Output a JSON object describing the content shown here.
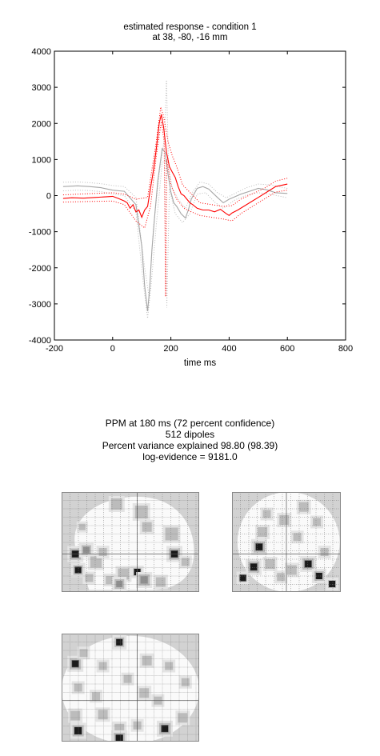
{
  "chart_data": {
    "type": "line",
    "title": "estimated response - condition 1",
    "subtitle": "at 38, -80, -16 mm",
    "xlabel": "time  ms",
    "ylabel": "",
    "xlim": [
      -200,
      800
    ],
    "ylim": [
      -4000,
      4000
    ],
    "xticks": [
      -200,
      0,
      200,
      400,
      600,
      800
    ],
    "yticks": [
      -4000,
      -3000,
      -2000,
      -1000,
      0,
      1000,
      2000,
      3000,
      4000
    ],
    "grid": false,
    "series": [
      {
        "color": "#ff0000",
        "style": "solid",
        "points": [
          [
            -170,
            -80
          ],
          [
            -140,
            -60
          ],
          [
            -100,
            -70
          ],
          [
            -60,
            -50
          ],
          [
            -20,
            -30
          ],
          [
            0,
            -20
          ],
          [
            20,
            -80
          ],
          [
            40,
            -150
          ],
          [
            50,
            -200
          ],
          [
            60,
            -350
          ],
          [
            70,
            -250
          ],
          [
            80,
            -450
          ],
          [
            90,
            -400
          ],
          [
            100,
            -600
          ],
          [
            110,
            -400
          ],
          [
            120,
            -300
          ],
          [
            130,
            200
          ],
          [
            140,
            700
          ],
          [
            150,
            1300
          ],
          [
            160,
            2000
          ],
          [
            167,
            2250
          ],
          [
            175,
            1900
          ],
          [
            185,
            1200
          ],
          [
            195,
            800
          ],
          [
            205,
            650
          ],
          [
            215,
            500
          ],
          [
            225,
            250
          ],
          [
            235,
            50
          ],
          [
            245,
            0
          ],
          [
            255,
            -100
          ],
          [
            265,
            -200
          ],
          [
            275,
            -250
          ],
          [
            290,
            -350
          ],
          [
            310,
            -400
          ],
          [
            330,
            -400
          ],
          [
            350,
            -450
          ],
          [
            370,
            -380
          ],
          [
            390,
            -500
          ],
          [
            400,
            -550
          ],
          [
            410,
            -480
          ],
          [
            430,
            -400
          ],
          [
            450,
            -300
          ],
          [
            470,
            -200
          ],
          [
            500,
            -50
          ],
          [
            530,
            100
          ],
          [
            560,
            250
          ],
          [
            600,
            320
          ]
        ]
      },
      {
        "color": "#ff0000",
        "style": "dotted",
        "points": [
          [
            -170,
            20
          ],
          [
            -120,
            40
          ],
          [
            -60,
            60
          ],
          [
            0,
            80
          ],
          [
            40,
            40
          ],
          [
            80,
            -100
          ],
          [
            120,
            -50
          ],
          [
            150,
            1500
          ],
          [
            165,
            2450
          ],
          [
            175,
            2200
          ],
          [
            190,
            1500
          ],
          [
            205,
            1100
          ],
          [
            220,
            800
          ],
          [
            240,
            300
          ],
          [
            270,
            50
          ],
          [
            300,
            -200
          ],
          [
            340,
            -250
          ],
          [
            380,
            -300
          ],
          [
            410,
            -280
          ],
          [
            440,
            -100
          ],
          [
            480,
            50
          ],
          [
            520,
            200
          ],
          [
            560,
            400
          ],
          [
            600,
            480
          ]
        ]
      },
      {
        "color": "#ff0000",
        "style": "dotted",
        "points": [
          [
            -170,
            -180
          ],
          [
            -120,
            -170
          ],
          [
            -60,
            -160
          ],
          [
            0,
            -150
          ],
          [
            40,
            -250
          ],
          [
            80,
            -700
          ],
          [
            110,
            -900
          ],
          [
            130,
            -300
          ],
          [
            150,
            1100
          ],
          [
            167,
            2050
          ],
          [
            177,
            1500
          ],
          [
            182,
            -2800
          ],
          [
            186,
            1000
          ],
          [
            200,
            300
          ],
          [
            220,
            -100
          ],
          [
            245,
            -350
          ],
          [
            270,
            -450
          ],
          [
            300,
            -550
          ],
          [
            340,
            -600
          ],
          [
            380,
            -650
          ],
          [
            410,
            -700
          ],
          [
            440,
            -500
          ],
          [
            480,
            -300
          ],
          [
            520,
            -100
          ],
          [
            560,
            100
          ],
          [
            600,
            150
          ]
        ]
      },
      {
        "color": "#a6a6a6",
        "style": "solid",
        "points": [
          [
            -170,
            250
          ],
          [
            -120,
            270
          ],
          [
            -80,
            250
          ],
          [
            -40,
            220
          ],
          [
            0,
            150
          ],
          [
            40,
            120
          ],
          [
            80,
            -250
          ],
          [
            100,
            -1400
          ],
          [
            110,
            -2500
          ],
          [
            120,
            -3200
          ],
          [
            127,
            -2600
          ],
          [
            135,
            -1500
          ],
          [
            145,
            -500
          ],
          [
            155,
            400
          ],
          [
            170,
            1300
          ],
          [
            180,
            1200
          ],
          [
            190,
            600
          ],
          [
            200,
            100
          ],
          [
            210,
            -200
          ],
          [
            220,
            -300
          ],
          [
            235,
            -500
          ],
          [
            250,
            -620
          ],
          [
            260,
            -400
          ],
          [
            270,
            -100
          ],
          [
            280,
            50
          ],
          [
            290,
            200
          ],
          [
            310,
            250
          ],
          [
            330,
            180
          ],
          [
            360,
            -50
          ],
          [
            380,
            -200
          ],
          [
            400,
            -100
          ],
          [
            420,
            -30
          ],
          [
            440,
            40
          ],
          [
            470,
            120
          ],
          [
            500,
            200
          ],
          [
            530,
            160
          ],
          [
            560,
            80
          ],
          [
            600,
            60
          ]
        ]
      },
      {
        "color": "#bcbcbc",
        "style": "dotted",
        "points": [
          [
            -170,
            370
          ],
          [
            -120,
            380
          ],
          [
            -80,
            360
          ],
          [
            -40,
            330
          ],
          [
            0,
            280
          ],
          [
            40,
            250
          ],
          [
            80,
            -50
          ],
          [
            110,
            -2000
          ],
          [
            125,
            -2800
          ],
          [
            140,
            -900
          ],
          [
            160,
            600
          ],
          [
            178,
            1600
          ],
          [
            185,
            3200
          ],
          [
            192,
            800
          ],
          [
            205,
            200
          ],
          [
            225,
            -100
          ],
          [
            250,
            -350
          ],
          [
            275,
            100
          ],
          [
            300,
            380
          ],
          [
            330,
            320
          ],
          [
            360,
            80
          ],
          [
            390,
            -60
          ],
          [
            420,
            60
          ],
          [
            460,
            220
          ],
          [
            500,
            320
          ],
          [
            540,
            300
          ],
          [
            600,
            200
          ]
        ]
      },
      {
        "color": "#bcbcbc",
        "style": "dotted",
        "points": [
          [
            -170,
            130
          ],
          [
            -120,
            150
          ],
          [
            -80,
            140
          ],
          [
            -40,
            110
          ],
          [
            0,
            40
          ],
          [
            40,
            0
          ],
          [
            80,
            -450
          ],
          [
            105,
            -2400
          ],
          [
            120,
            -3400
          ],
          [
            132,
            -2500
          ],
          [
            150,
            -800
          ],
          [
            170,
            900
          ],
          [
            180,
            1000
          ],
          [
            186,
            -3100
          ],
          [
            195,
            200
          ],
          [
            215,
            -500
          ],
          [
            240,
            -750
          ],
          [
            265,
            -500
          ],
          [
            290,
            40
          ],
          [
            320,
            80
          ],
          [
            350,
            -180
          ],
          [
            380,
            -350
          ],
          [
            420,
            -120
          ],
          [
            460,
            20
          ],
          [
            500,
            80
          ],
          [
            540,
            40
          ],
          [
            600,
            -60
          ]
        ]
      }
    ]
  },
  "ppm": {
    "line1": "PPM at 180 ms (72 percent confidence)",
    "line2": "512 dipoles",
    "line3": "Percent variance explained 98.80 (98.39)",
    "line4": "log-evidence = 9181.0"
  },
  "projections": {
    "sagittal": [
      [
        0.1,
        0.62,
        14,
        3
      ],
      [
        0.12,
        0.78,
        12,
        3
      ],
      [
        0.2,
        0.86,
        10,
        1
      ],
      [
        0.18,
        0.58,
        12,
        2
      ],
      [
        0.25,
        0.7,
        14,
        1
      ],
      [
        0.35,
        0.88,
        10,
        1
      ],
      [
        0.45,
        0.82,
        14,
        1
      ],
      [
        0.42,
        0.92,
        12,
        2
      ],
      [
        0.55,
        0.8,
        10,
        3
      ],
      [
        0.6,
        0.88,
        14,
        2
      ],
      [
        0.72,
        0.9,
        12,
        1
      ],
      [
        0.4,
        0.12,
        14,
        1
      ],
      [
        0.58,
        0.2,
        16,
        1
      ],
      [
        0.62,
        0.35,
        12,
        1
      ],
      [
        0.8,
        0.42,
        16,
        1
      ],
      [
        0.82,
        0.62,
        14,
        3
      ],
      [
        0.9,
        0.7,
        10,
        1
      ],
      [
        0.3,
        0.6,
        10,
        1
      ],
      [
        0.15,
        0.35,
        8,
        1
      ]
    ],
    "coronal": [
      [
        0.25,
        0.55,
        14,
        3
      ],
      [
        0.28,
        0.4,
        12,
        1
      ],
      [
        0.2,
        0.75,
        14,
        3
      ],
      [
        0.1,
        0.86,
        10,
        3
      ],
      [
        0.35,
        0.72,
        12,
        1
      ],
      [
        0.45,
        0.85,
        10,
        1
      ],
      [
        0.55,
        0.78,
        12,
        1
      ],
      [
        0.7,
        0.72,
        14,
        3
      ],
      [
        0.8,
        0.84,
        12,
        4
      ],
      [
        0.92,
        0.92,
        10,
        4
      ],
      [
        0.6,
        0.45,
        10,
        1
      ],
      [
        0.48,
        0.28,
        12,
        1
      ],
      [
        0.66,
        0.15,
        12,
        1
      ],
      [
        0.78,
        0.3,
        10,
        1
      ],
      [
        0.85,
        0.6,
        10,
        1
      ],
      [
        0.32,
        0.22,
        10,
        1
      ]
    ],
    "axial": [
      [
        0.1,
        0.28,
        14,
        3
      ],
      [
        0.16,
        0.18,
        10,
        1
      ],
      [
        0.12,
        0.5,
        10,
        1
      ],
      [
        0.1,
        0.76,
        12,
        1
      ],
      [
        0.12,
        0.9,
        14,
        4
      ],
      [
        0.25,
        0.58,
        10,
        1
      ],
      [
        0.3,
        0.75,
        12,
        1
      ],
      [
        0.42,
        0.88,
        12,
        1
      ],
      [
        0.42,
        0.97,
        14,
        4
      ],
      [
        0.55,
        0.85,
        10,
        1
      ],
      [
        0.75,
        0.88,
        14,
        3
      ],
      [
        0.88,
        0.78,
        12,
        1
      ],
      [
        0.9,
        0.45,
        10,
        1
      ],
      [
        0.78,
        0.3,
        10,
        1
      ],
      [
        0.62,
        0.25,
        12,
        1
      ],
      [
        0.6,
        0.55,
        12,
        1
      ],
      [
        0.48,
        0.42,
        10,
        1
      ],
      [
        0.42,
        0.08,
        12,
        3
      ],
      [
        0.3,
        0.3,
        10,
        1
      ],
      [
        0.7,
        0.62,
        10,
        1
      ]
    ]
  }
}
